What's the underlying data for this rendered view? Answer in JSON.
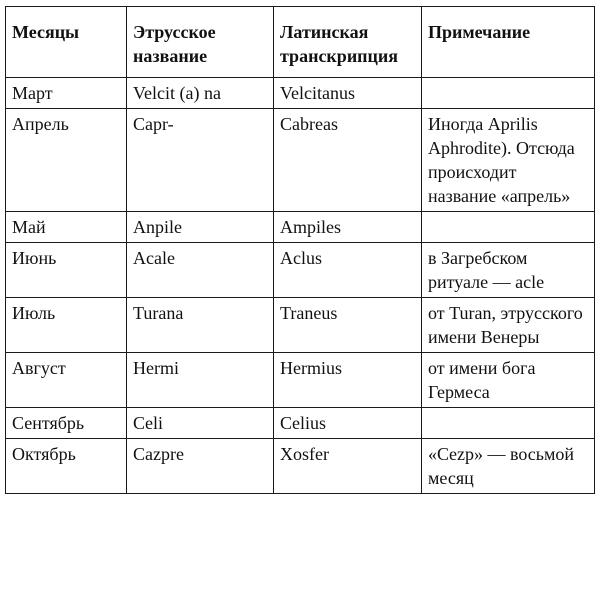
{
  "table": {
    "headers": [
      "Месяцы",
      "Этрусское название",
      "Латинская транскрипция",
      "Примечание"
    ],
    "rows": [
      [
        "Март",
        "Velcit (a) na",
        "Velcitanus",
        ""
      ],
      [
        "Апрель",
        "Capr-",
        "Cabreas",
        "Иногда Aprilis Aphrodite). Отсюда происходит название «апрель»"
      ],
      [
        "Май",
        "Anpile",
        "Ampiles",
        ""
      ],
      [
        "Июнь",
        "Acale",
        "Aclus",
        "в Загребском ритуале — acle"
      ],
      [
        "Июль",
        "Turana",
        "Traneus",
        "от Turan, этрусского имени Венеры"
      ],
      [
        "Август",
        "Hermi",
        "Hermius",
        "от имени бога Гермеса"
      ],
      [
        "Сентябрь",
        "Celi",
        "Celius",
        ""
      ],
      [
        "Октябрь",
        "Cazpre",
        "Xosfer",
        "«Cezp» — восьмой месяц"
      ]
    ]
  }
}
